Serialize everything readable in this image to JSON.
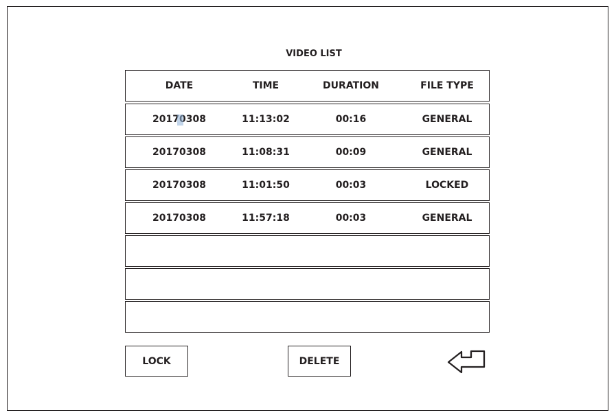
{
  "title": "VIDEO LIST",
  "columns": [
    "DATE",
    "TIME",
    "DURATION",
    "FILE TYPE"
  ],
  "rows": [
    [
      "20170308",
      "11:13:02",
      "00:16",
      "GENERAL"
    ],
    [
      "20170308",
      "11:08:31",
      "00:09",
      "GENERAL"
    ],
    [
      "20170308",
      "11:01:50",
      "00:03",
      "LOCKED"
    ],
    [
      "20170308",
      "11:57:18",
      "00:03",
      "GENERAL"
    ],
    [
      "",
      "",
      "",
      ""
    ],
    [
      "",
      "",
      "",
      ""
    ],
    [
      "",
      "",
      "",
      ""
    ]
  ],
  "buttons": {
    "lock": "LOCK",
    "delete": "DELETE",
    "back_icon": "return-arrow-icon"
  }
}
